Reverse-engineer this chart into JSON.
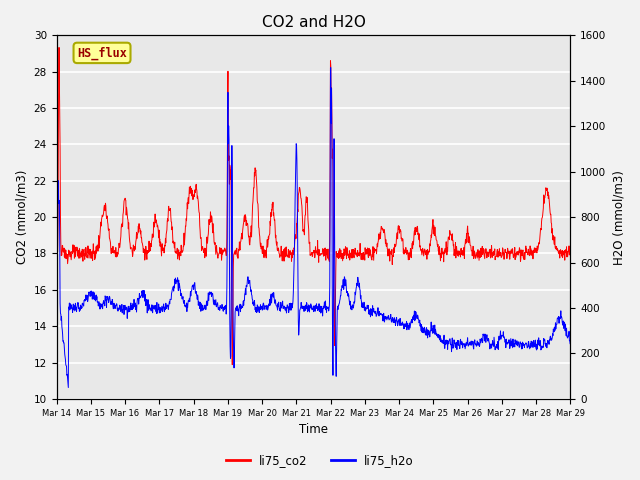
{
  "title": "CO2 and H2O",
  "xlabel": "Time",
  "ylabel_left": "CO2 (mmol/m3)",
  "ylabel_right": "H2O (mmol/m3)",
  "left_ylim": [
    10,
    30
  ],
  "right_ylim": [
    0,
    1600
  ],
  "left_yticks": [
    10,
    12,
    14,
    16,
    18,
    20,
    22,
    24,
    26,
    28,
    30
  ],
  "right_yticks": [
    0,
    200,
    400,
    600,
    800,
    1000,
    1200,
    1400,
    1600
  ],
  "xtick_labels": [
    "Mar 14",
    "Mar 15",
    "Mar 16",
    "Mar 17",
    "Mar 18",
    "Mar 19",
    "Mar 20",
    "Mar 21",
    "Mar 22",
    "Mar 23",
    "Mar 24",
    "Mar 25",
    "Mar 26",
    "Mar 27",
    "Mar 28",
    "Mar 29"
  ],
  "co2_color": "#FF0000",
  "h2o_color": "#0000FF",
  "bg_color": "#E8E8E8",
  "grid_color": "#FFFFFF",
  "annotation_text": "HS_flux",
  "annotation_facecolor": "#FFFF99",
  "annotation_edgecolor": "#AAAA00",
  "annotation_textcolor": "#990000",
  "legend_co2_label": "li75_co2",
  "legend_h2o_label": "li75_h2o",
  "title_fontsize": 11,
  "linewidth": 0.7
}
